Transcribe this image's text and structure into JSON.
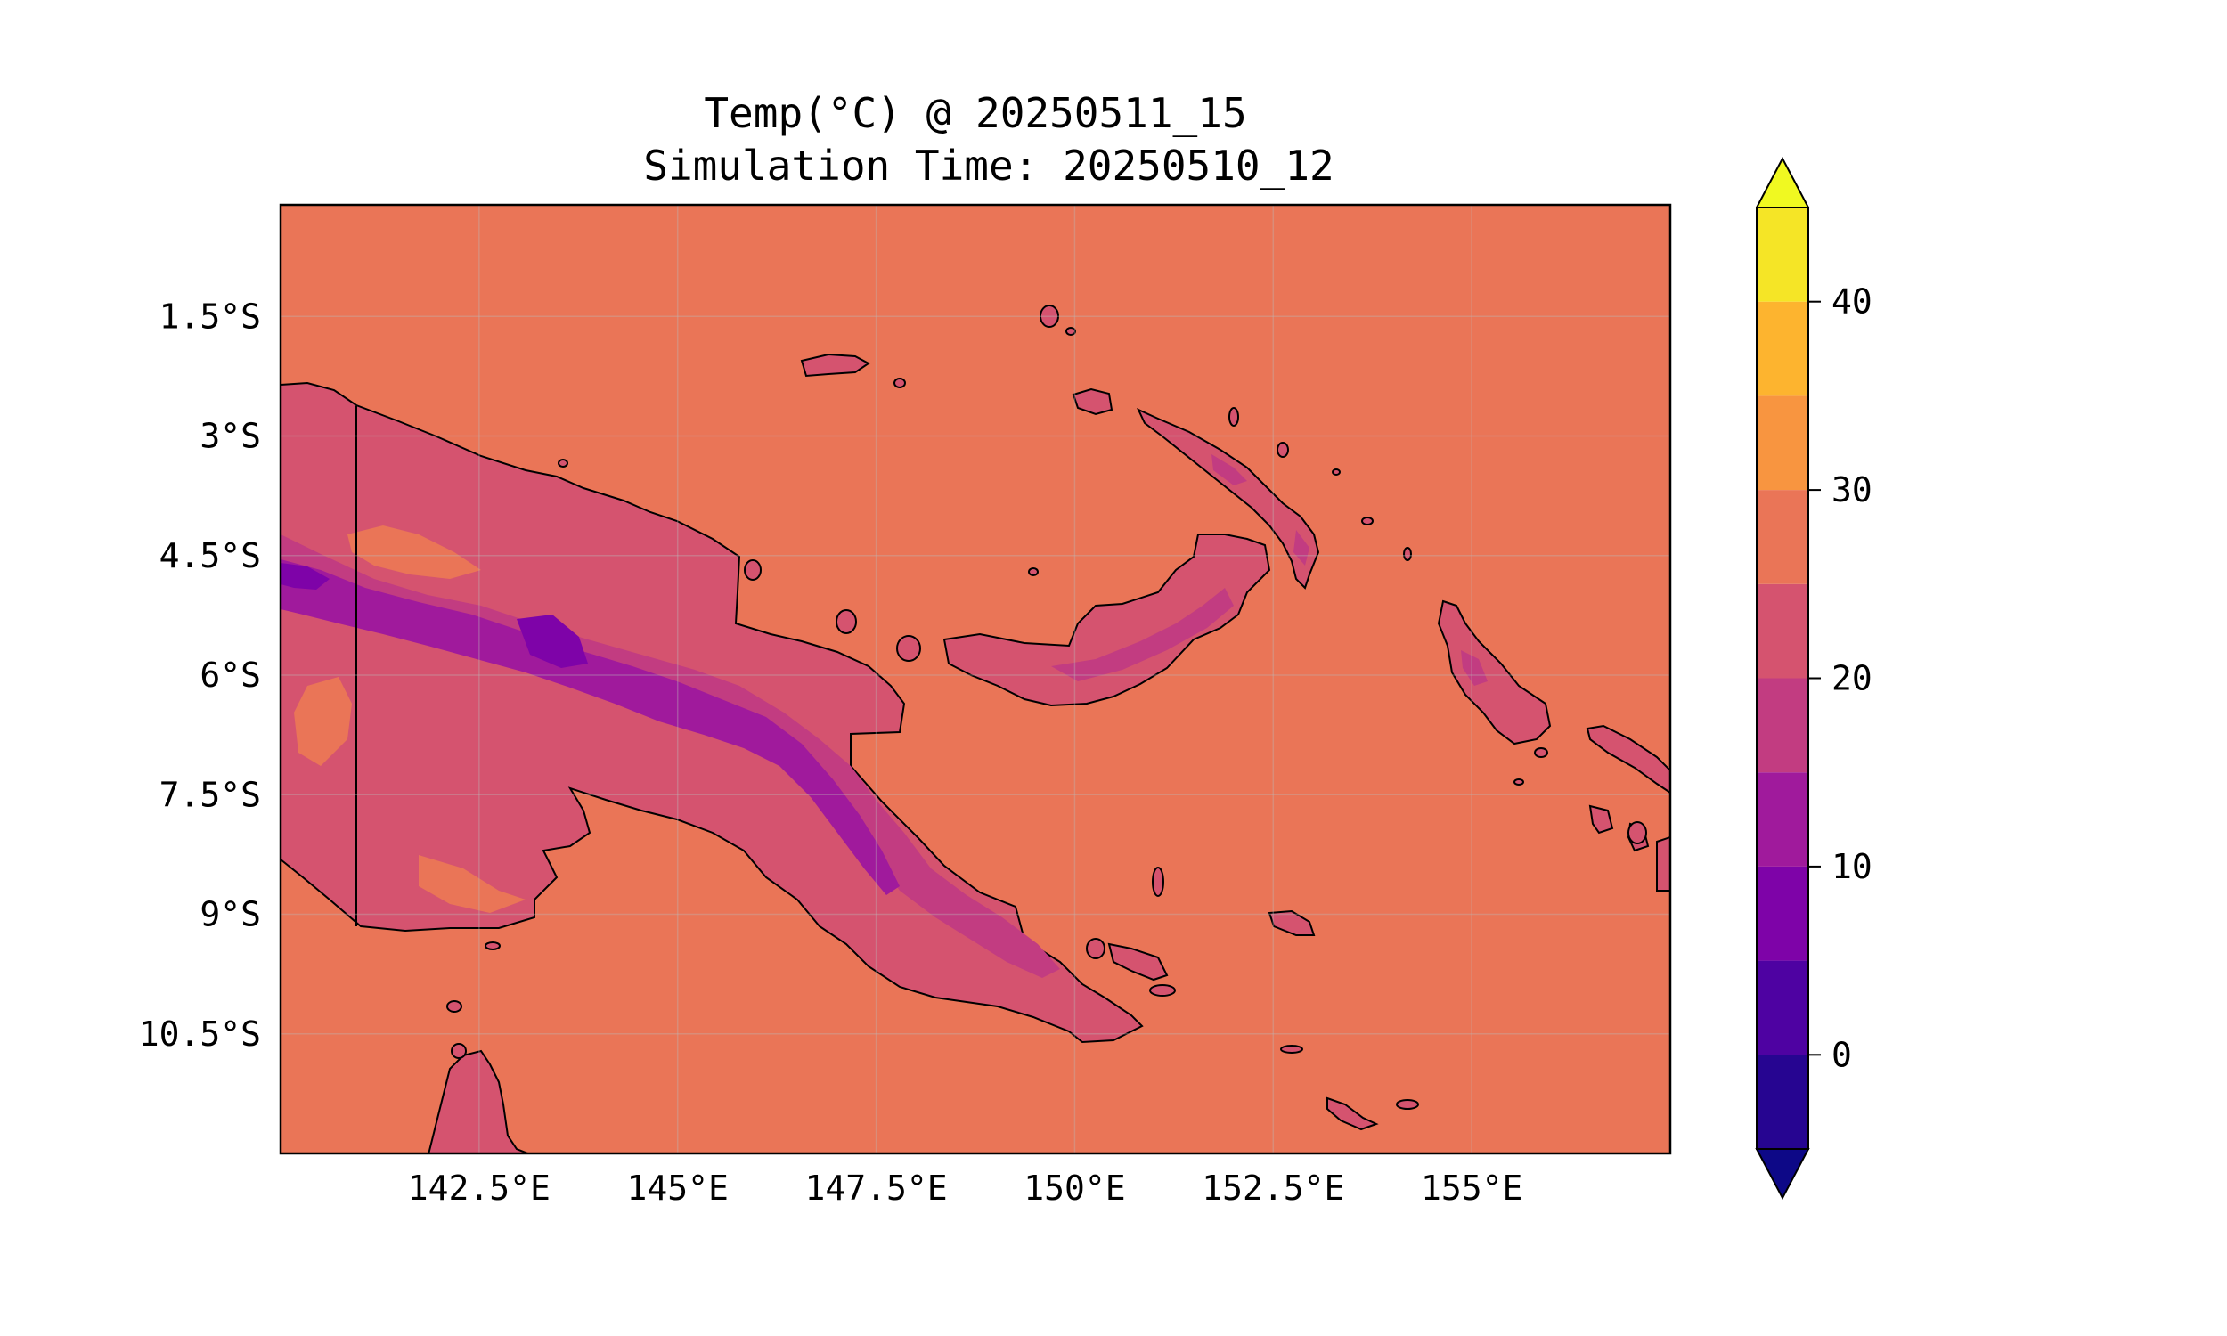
{
  "title": {
    "line1": "Temp(°C) @ 20250511_15",
    "line2": "Simulation Time: 20250510_12"
  },
  "map": {
    "extent": {
      "lon_min": 140.0,
      "lon_max": 157.5,
      "lat_min": -12.0,
      "lat_max": -0.1
    },
    "background_color": "#ea7557",
    "coastline_color": "#000000",
    "gridlines": true,
    "lon_ticks": [
      {
        "value": 142.5,
        "label": "142.5°E"
      },
      {
        "value": 145.0,
        "label": "145°E"
      },
      {
        "value": 147.5,
        "label": "147.5°E"
      },
      {
        "value": 150.0,
        "label": "150°E"
      },
      {
        "value": 152.5,
        "label": "152.5°E"
      },
      {
        "value": 155.0,
        "label": "155°E"
      }
    ],
    "lat_ticks": [
      {
        "value": -1.5,
        "label": "1.5°S"
      },
      {
        "value": -3.0,
        "label": "3°S"
      },
      {
        "value": -4.5,
        "label": "4.5°S"
      },
      {
        "value": -6.0,
        "label": "6°S"
      },
      {
        "value": -7.5,
        "label": "7.5°S"
      },
      {
        "value": -9.0,
        "label": "9°S"
      },
      {
        "value": -10.5,
        "label": "10.5°S"
      }
    ]
  },
  "colorbar": {
    "min": -5,
    "max": 45,
    "extend": "both",
    "colormap": "plasma",
    "levels": [
      -5,
      0,
      5,
      10,
      15,
      20,
      25,
      30,
      35,
      40,
      45
    ],
    "colors": [
      "#260591",
      "#4e02a2",
      "#7e03a8",
      "#a01a9c",
      "#c23c81",
      "#d5536f",
      "#ea7557",
      "#f89540",
      "#fdb42f",
      "#f5e526"
    ],
    "under_color": "#0d0887",
    "over_color": "#f0f921",
    "ticks": [
      {
        "value": 0,
        "label": "0"
      },
      {
        "value": 10,
        "label": "10"
      },
      {
        "value": 20,
        "label": "20"
      },
      {
        "value": 30,
        "label": "30"
      },
      {
        "value": 40,
        "label": "40"
      }
    ]
  }
}
